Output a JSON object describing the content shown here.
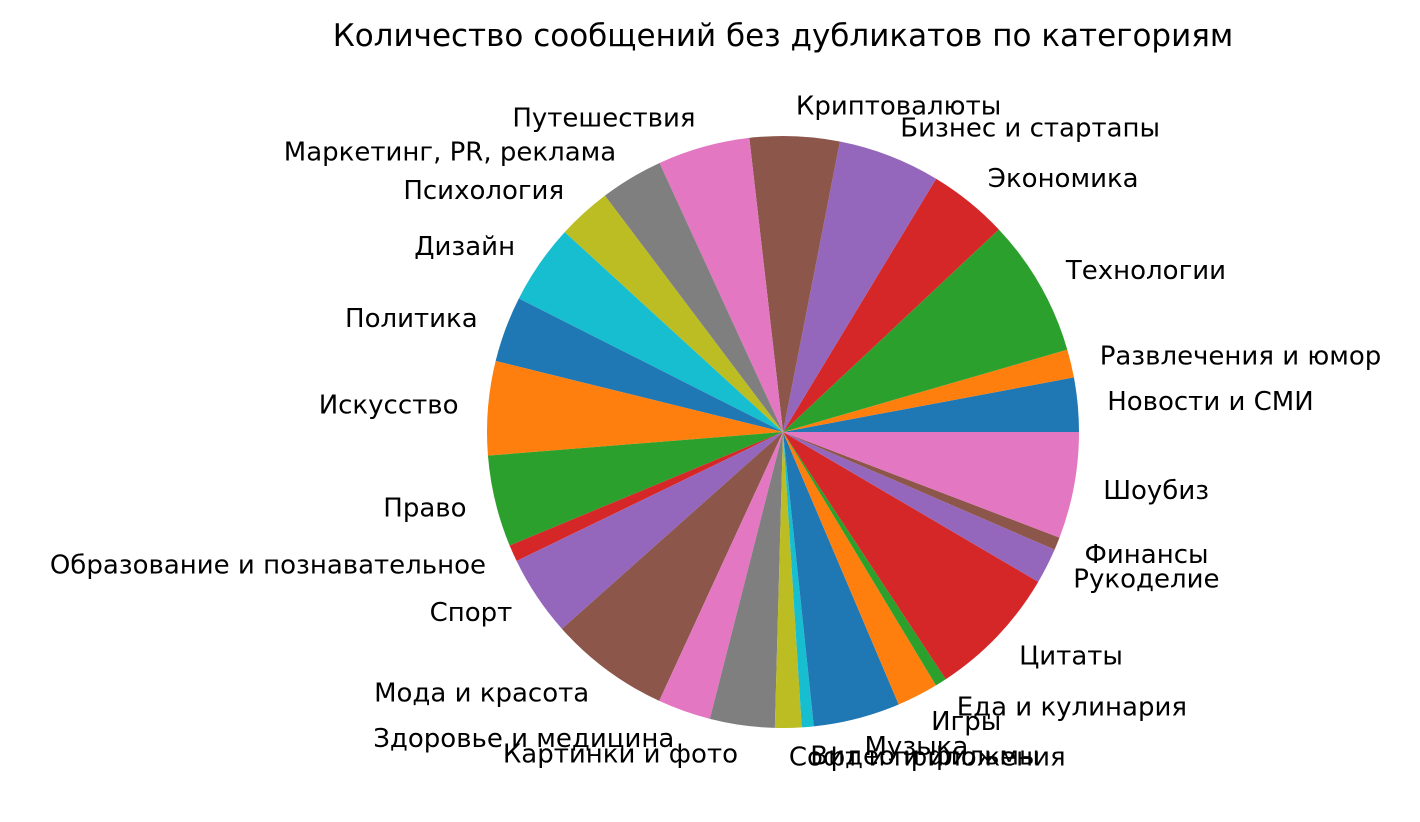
{
  "chart_data": {
    "type": "pie",
    "title": "Количество сообщений без дубликатов по категориям",
    "start_angle_deg": 0,
    "direction": "counterclockwise",
    "legend": "none",
    "slices": [
      {
        "label": "Новости и СМИ",
        "value": 3.04,
        "color": "#1f77b4"
      },
      {
        "label": "Развлечения и юмор",
        "value": 1.58,
        "color": "#ff7f0e"
      },
      {
        "label": "Технологии",
        "value": 7.73,
        "color": "#2ca02c"
      },
      {
        "label": "Экономика",
        "value": 4.48,
        "color": "#d62728"
      },
      {
        "label": "Бизнес и стартапы",
        "value": 5.74,
        "color": "#9467bd"
      },
      {
        "label": "Криптовалюты",
        "value": 5.04,
        "color": "#8c564b"
      },
      {
        "label": "Путешествия",
        "value": 5.18,
        "color": "#e377c2"
      },
      {
        "label": "Маркетинг, PR, реклама",
        "value": 3.53,
        "color": "#7f7f7f"
      },
      {
        "label": "Психология",
        "value": 3.01,
        "color": "#bcbd22"
      },
      {
        "label": "Дизайн",
        "value": 4.48,
        "color": "#17becf"
      },
      {
        "label": "Политика",
        "value": 3.7,
        "color": "#1f77b4"
      },
      {
        "label": "Искусство",
        "value": 5.28,
        "color": "#ff7f0e"
      },
      {
        "label": "Право",
        "value": 5.14,
        "color": "#2ca02c"
      },
      {
        "label": "Образование и познавательное",
        "value": 0.94,
        "color": "#d62728"
      },
      {
        "label": "Спорт",
        "value": 4.53,
        "color": "#9467bd"
      },
      {
        "label": "Мода и красота",
        "value": 6.75,
        "color": "#8c564b"
      },
      {
        "label": "Здоровье и медицина",
        "value": 2.98,
        "color": "#e377c2"
      },
      {
        "label": "Картинки и фото",
        "value": 3.64,
        "color": "#7f7f7f"
      },
      {
        "label": "Софт и приложения",
        "value": 1.49,
        "color": "#bcbd22"
      },
      {
        "label": "Видео и фильмы",
        "value": 0.67,
        "color": "#17becf"
      },
      {
        "label": "Музыка",
        "value": 4.87,
        "color": "#1f77b4"
      },
      {
        "label": "Игры",
        "value": 2.32,
        "color": "#ff7f0e"
      },
      {
        "label": "Еда и кулинария",
        "value": 0.64,
        "color": "#2ca02c"
      },
      {
        "label": "Цитаты",
        "value": 7.5,
        "color": "#d62728"
      },
      {
        "label": "Рукоделие",
        "value": 2.0,
        "color": "#9467bd"
      },
      {
        "label": "Финансы",
        "value": 0.72,
        "color": "#8c564b"
      },
      {
        "label": "Шоубиз",
        "value": 5.98,
        "color": "#e377c2"
      }
    ]
  }
}
